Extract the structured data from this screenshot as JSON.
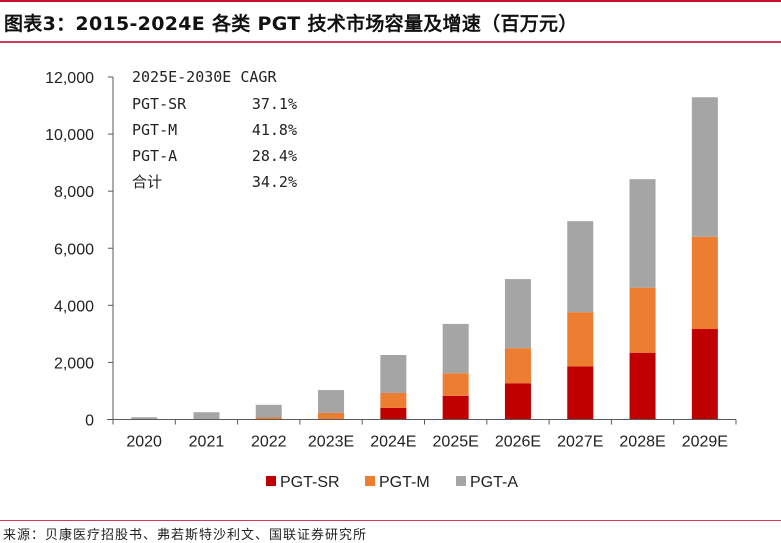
{
  "header": {
    "title": "图表3：2015-2024E 各类 PGT 技术市场容量及增速（百万元）"
  },
  "footer": {
    "source": "来源：贝康医疗招股书、弗若斯特沙利文、国联证券研究所"
  },
  "colors": {
    "rule": "#c8102e",
    "PGT-SR": "#c00000",
    "PGT-M": "#ed7d31",
    "PGT-A": "#a5a5a5",
    "axis": "#595959"
  },
  "cagr_box": {
    "header": "2025E-2030E CAGR",
    "rows": [
      {
        "label": "PGT-SR",
        "value": "37.1%"
      },
      {
        "label": "PGT-M",
        "value": "41.8%"
      },
      {
        "label": "PGT-A",
        "value": "28.4%"
      },
      {
        "label": "合计",
        "value": "34.2%"
      }
    ]
  },
  "chart_data": {
    "type": "bar",
    "stacked": true,
    "title": "2015-2024E 各类 PGT 技术市场容量及增速（百万元）",
    "xlabel": "",
    "ylabel": "",
    "categories": [
      "2020",
      "2021",
      "2022",
      "2023E",
      "2024E",
      "2025E",
      "2026E",
      "2027E",
      "2028E",
      "2029E"
    ],
    "series": [
      {
        "name": "PGT-SR",
        "values": [
          0,
          0,
          0,
          0,
          410,
          830,
          1270,
          1860,
          2340,
          3170
        ]
      },
      {
        "name": "PGT-M",
        "values": [
          0,
          0,
          70,
          230,
          520,
          790,
          1230,
          1900,
          2280,
          3230
        ]
      },
      {
        "name": "PGT-A",
        "values": [
          80,
          255,
          445,
          800,
          1330,
          1730,
          2420,
          3190,
          3800,
          4890
        ]
      }
    ],
    "yticks": [
      0,
      2000,
      4000,
      6000,
      8000,
      10000,
      12000
    ],
    "ytick_labels": [
      "0",
      "2,000",
      "4,000",
      "6,000",
      "8,000",
      "10,000",
      "12,000"
    ],
    "ylim": [
      0,
      12000
    ],
    "grid": false,
    "legend": {
      "placement": "bottom",
      "entries": [
        "PGT-SR",
        "PGT-M",
        "PGT-A"
      ]
    },
    "annotation": {
      "text_header": "2025E-2030E CAGR",
      "placement": "top-left"
    }
  }
}
